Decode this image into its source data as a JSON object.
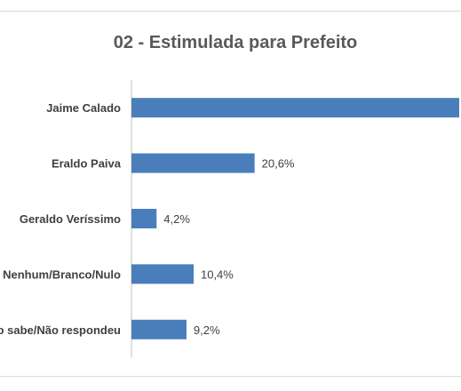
{
  "chart_data": {
    "type": "bar",
    "orientation": "horizontal",
    "title": "02 - Estimulada para Prefeito",
    "categories": [
      "Jaime Calado",
      "Eraldo Paiva",
      "Geraldo Veríssimo",
      "Nenhum/Branco/Nulo",
      "Não sabe/Não respondeu"
    ],
    "values": [
      55.6,
      20.6,
      4.2,
      10.4,
      9.2
    ],
    "value_labels": [
      "",
      "20,6%",
      "4,2%",
      "10,4%",
      "9,2%"
    ],
    "bar_color": "#4a7ebb",
    "grid": false,
    "legend": "none"
  }
}
